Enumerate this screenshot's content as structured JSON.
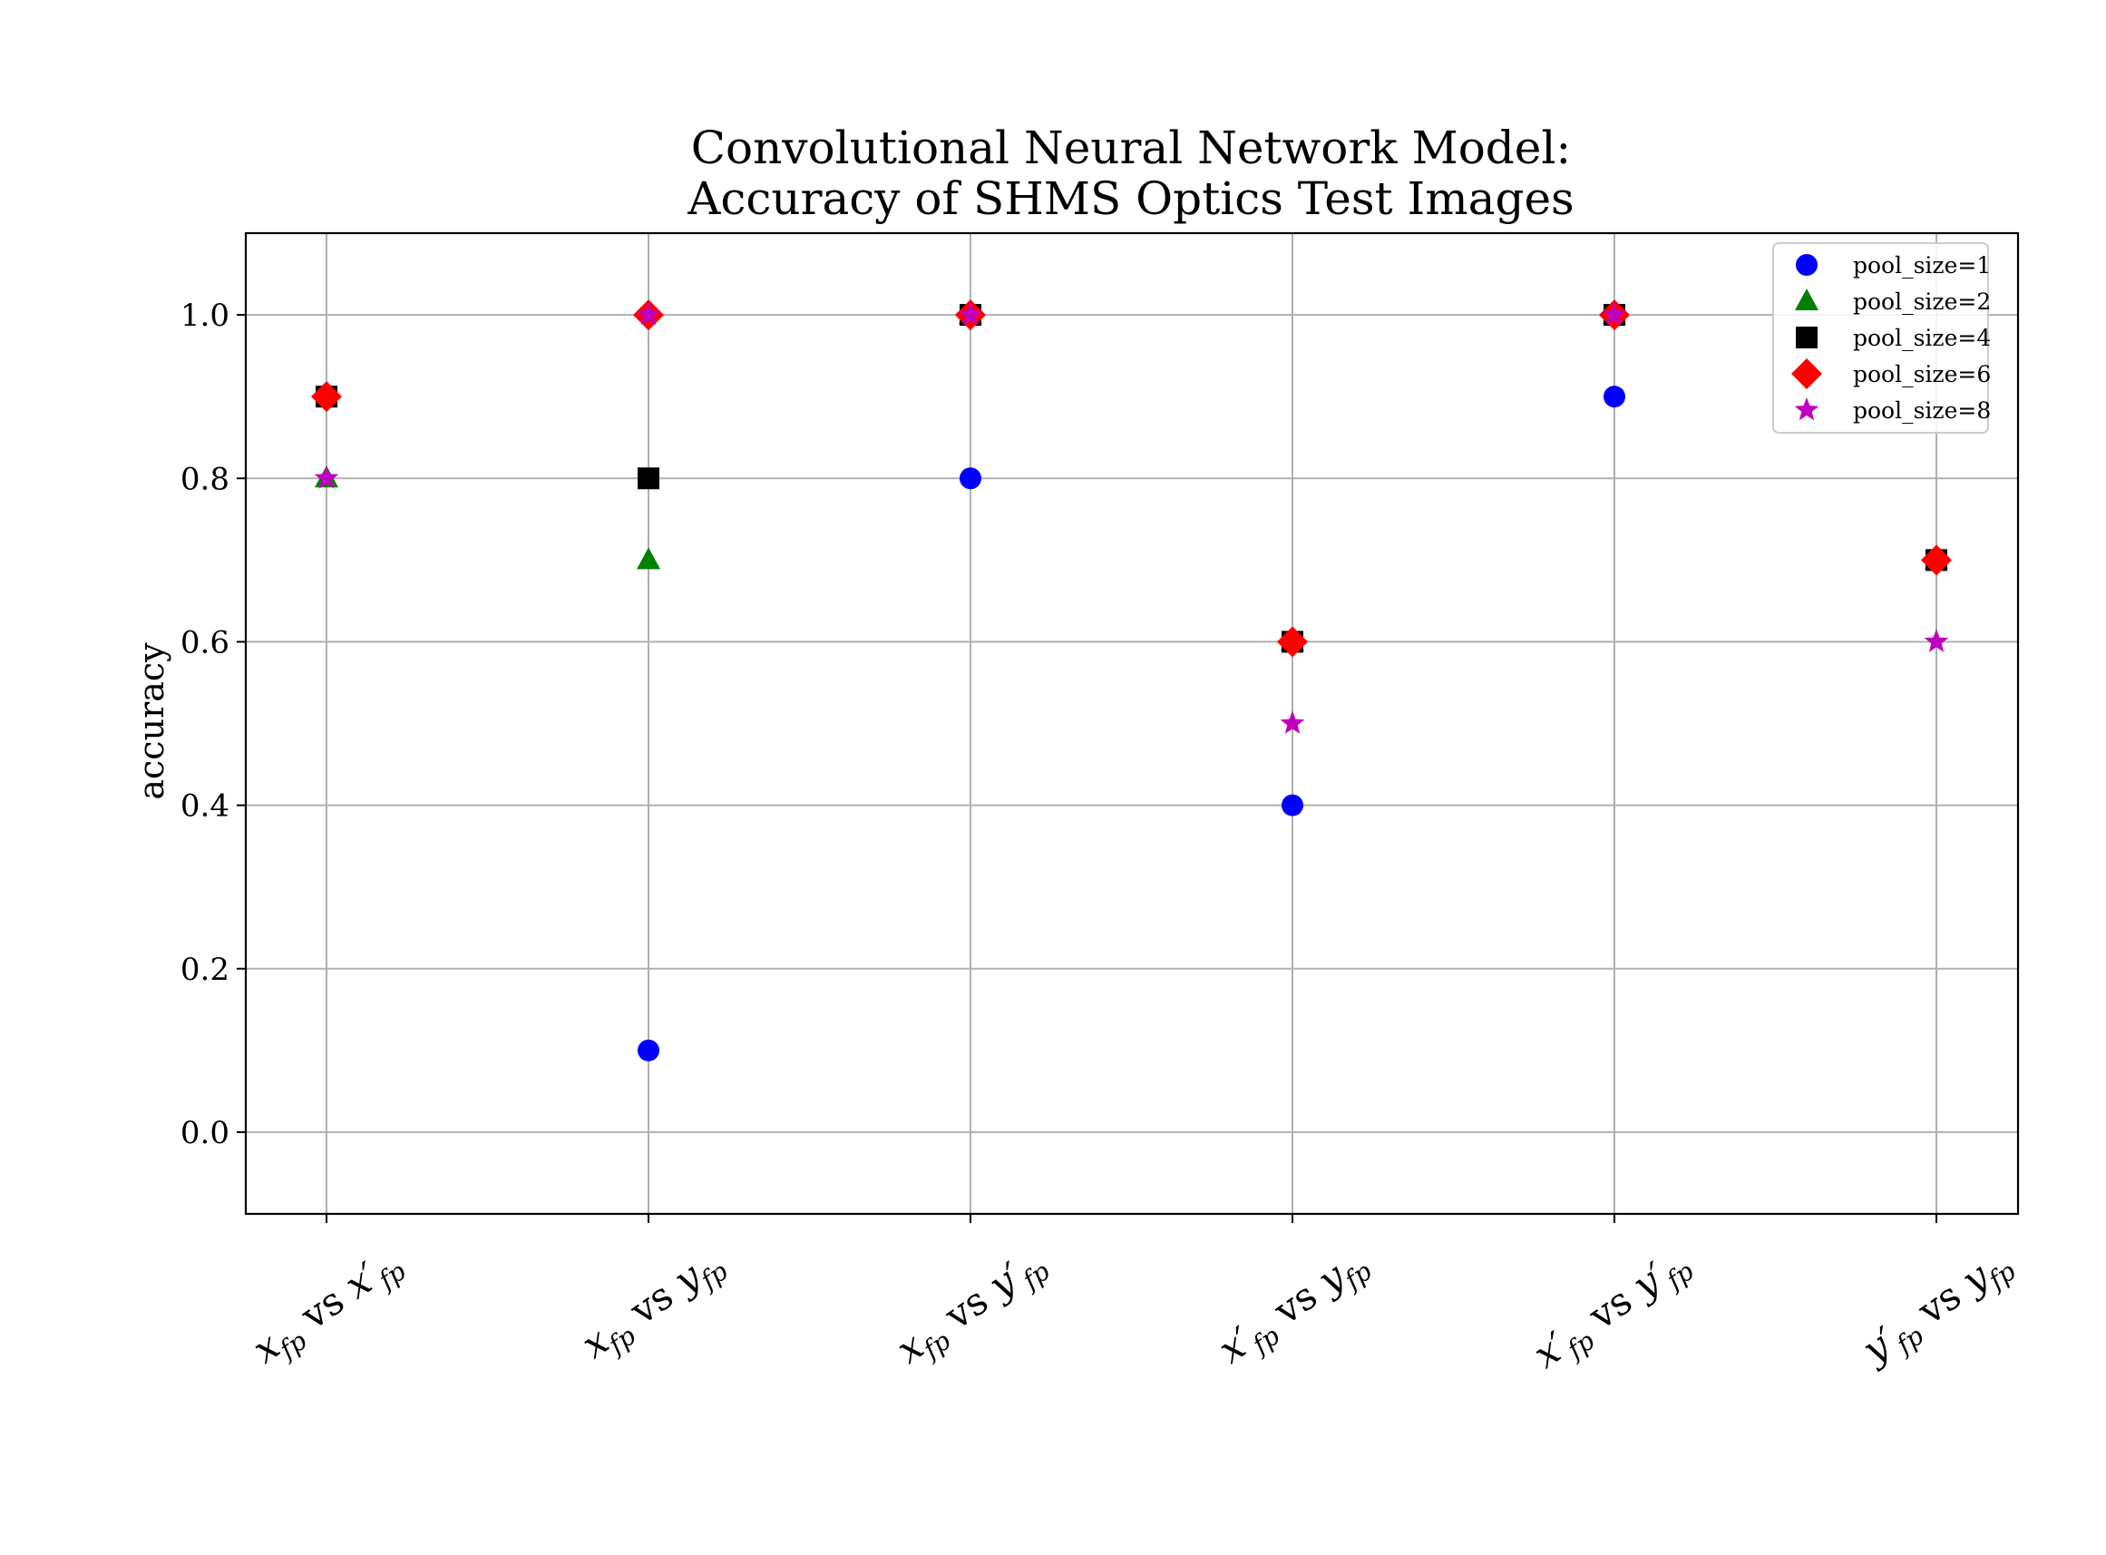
{
  "chart_data": {
    "type": "scatter",
    "title": [
      "Convolutional Neural Network Model:",
      "Accuracy of SHMS Optics Test Images"
    ],
    "xlabel": "",
    "ylabel": "accuracy",
    "ylim": [
      -0.1,
      1.1
    ],
    "yticks": [
      0.0,
      0.2,
      0.4,
      0.6,
      0.8,
      1.0
    ],
    "ytick_labels": [
      "0.0",
      "0.2",
      "0.4",
      "0.6",
      "0.8",
      "1.0"
    ],
    "categories": [
      {
        "a": "x",
        "ap": "",
        "b": "x",
        "bp": "′"
      },
      {
        "a": "x",
        "ap": "",
        "b": "y",
        "bp": ""
      },
      {
        "a": "x",
        "ap": "",
        "b": "y",
        "bp": "′"
      },
      {
        "a": "x",
        "ap": "′",
        "b": "y",
        "bp": ""
      },
      {
        "a": "x",
        "ap": "′",
        "b": "y",
        "bp": "′"
      },
      {
        "a": "y",
        "ap": "′",
        "b": "y",
        "bp": ""
      }
    ],
    "subscript": "fp",
    "connector": "vs",
    "grid": true,
    "legend_position": "top-right",
    "series": [
      {
        "name": "pool_size=1",
        "marker": "circle",
        "color": "#0000ff",
        "values": [
          0.9,
          0.1,
          0.8,
          0.4,
          0.9,
          0.7
        ]
      },
      {
        "name": "pool_size=2",
        "marker": "triangle",
        "color": "#008000",
        "values": [
          0.8,
          0.7,
          1.0,
          0.6,
          1.0,
          0.7
        ]
      },
      {
        "name": "pool_size=4",
        "marker": "square",
        "color": "#000000",
        "values": [
          0.9,
          0.8,
          1.0,
          0.6,
          1.0,
          0.7
        ]
      },
      {
        "name": "pool_size=6",
        "marker": "diamond",
        "color": "#ff0000",
        "values": [
          0.9,
          1.0,
          1.0,
          0.6,
          1.0,
          0.7
        ]
      },
      {
        "name": "pool_size=8",
        "marker": "star",
        "color": "#bf00bf",
        "values": [
          0.8,
          1.0,
          1.0,
          0.5,
          1.0,
          0.6
        ]
      }
    ]
  }
}
